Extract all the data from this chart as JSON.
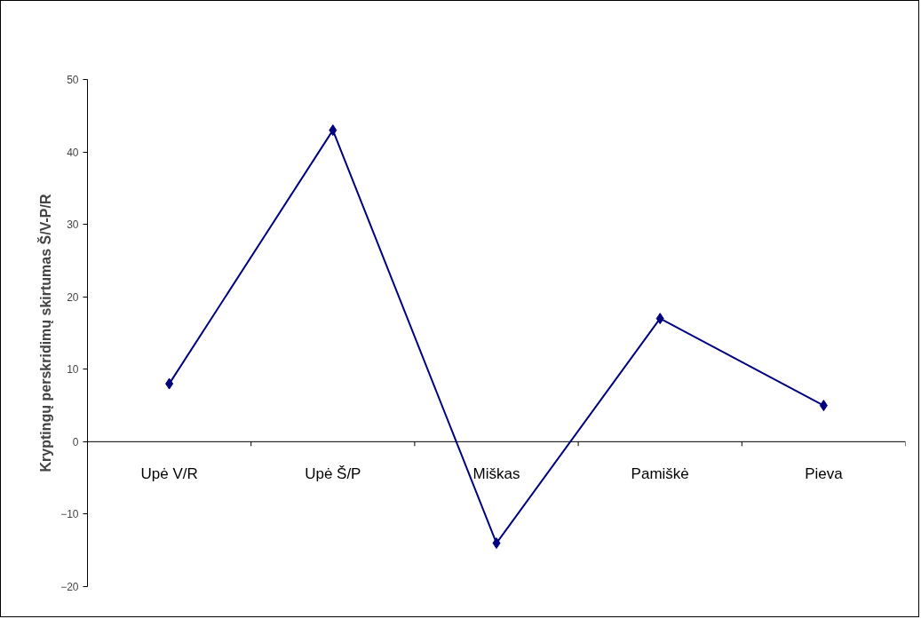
{
  "chart_data": {
    "type": "line",
    "ylabel": "Kryptingų perskridimų skirtumas Š/V-P/R",
    "categories": [
      "Upė V/R",
      "Upė Š/P",
      "Miškas",
      "Pamiškė",
      "Pieva"
    ],
    "series": [
      {
        "color": "#000080",
        "values": [
          8,
          43,
          -14,
          17,
          5
        ]
      }
    ],
    "ylim": [
      -20,
      50
    ],
    "yticks": [
      -20,
      -10,
      0,
      10,
      20,
      30,
      40,
      50
    ],
    "marker": "diamond",
    "line_style": "solid",
    "grid": false
  }
}
